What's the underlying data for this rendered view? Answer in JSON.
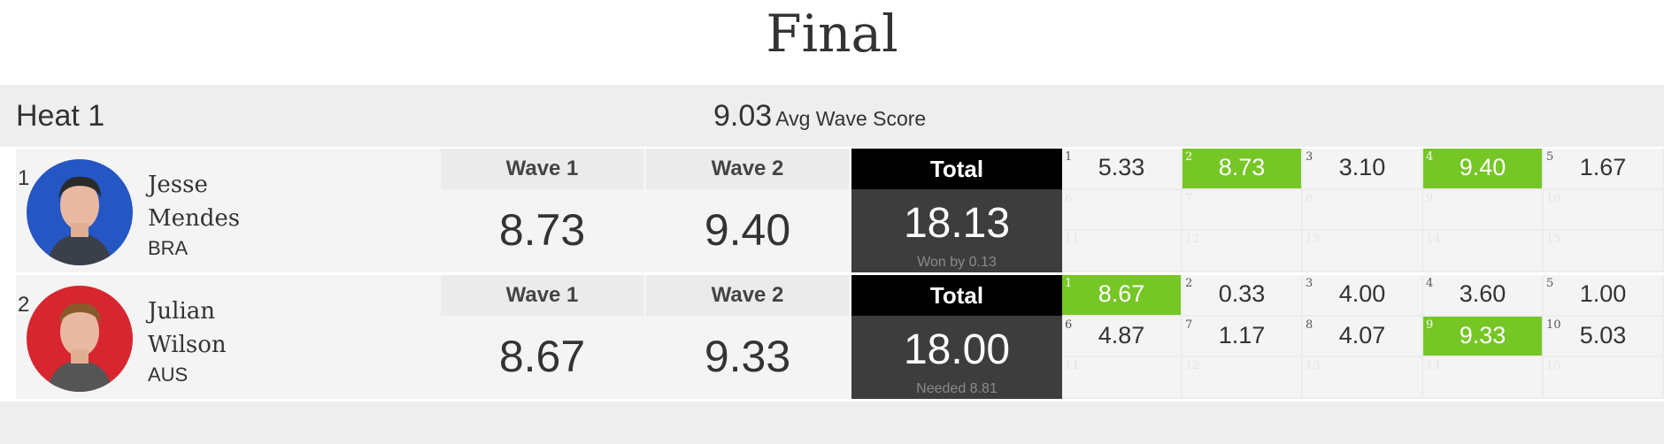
{
  "page_title": "Final",
  "heat": {
    "name": "Heat 1",
    "avg_score": "9.03",
    "avg_label": "Avg Wave Score"
  },
  "colors": {
    "best_wave": "#76c626",
    "total_header": "#000000",
    "total_body": "#3d3d3d"
  },
  "surfers": [
    {
      "seed": "1",
      "first": "Jesse",
      "last": "Mendes",
      "country": "BRA",
      "avatar_color": "#2456c4",
      "wave1_label": "Wave 1",
      "wave1": "8.73",
      "wave2_label": "Wave 2",
      "wave2": "9.40",
      "total_label": "Total",
      "total": "18.13",
      "status": "Won by 0.13",
      "waves": [
        {
          "n": "1",
          "s": "5.33"
        },
        {
          "n": "2",
          "s": "8.73",
          "best": true
        },
        {
          "n": "3",
          "s": "3.10"
        },
        {
          "n": "4",
          "s": "9.40",
          "best": true
        },
        {
          "n": "5",
          "s": "1.67"
        },
        {
          "n": "6",
          "s": ""
        },
        {
          "n": "7",
          "s": ""
        },
        {
          "n": "8",
          "s": ""
        },
        {
          "n": "9",
          "s": ""
        },
        {
          "n": "10",
          "s": ""
        },
        {
          "n": "11",
          "s": ""
        },
        {
          "n": "12",
          "s": ""
        },
        {
          "n": "13",
          "s": ""
        },
        {
          "n": "14",
          "s": ""
        },
        {
          "n": "15",
          "s": ""
        }
      ]
    },
    {
      "seed": "2",
      "first": "Julian",
      "last": "Wilson",
      "country": "AUS",
      "avatar_color": "#d7262f",
      "wave1_label": "Wave 1",
      "wave1": "8.67",
      "wave2_label": "Wave 2",
      "wave2": "9.33",
      "total_label": "Total",
      "total": "18.00",
      "status": "Needed 8.81",
      "waves": [
        {
          "n": "1",
          "s": "8.67",
          "best": true
        },
        {
          "n": "2",
          "s": "0.33"
        },
        {
          "n": "3",
          "s": "4.00"
        },
        {
          "n": "4",
          "s": "3.60"
        },
        {
          "n": "5",
          "s": "1.00"
        },
        {
          "n": "6",
          "s": "4.87"
        },
        {
          "n": "7",
          "s": "1.17"
        },
        {
          "n": "8",
          "s": "4.07"
        },
        {
          "n": "9",
          "s": "9.33",
          "best": true
        },
        {
          "n": "10",
          "s": "5.03"
        },
        {
          "n": "11",
          "s": ""
        },
        {
          "n": "12",
          "s": ""
        },
        {
          "n": "13",
          "s": ""
        },
        {
          "n": "14",
          "s": ""
        },
        {
          "n": "15",
          "s": ""
        }
      ]
    }
  ]
}
